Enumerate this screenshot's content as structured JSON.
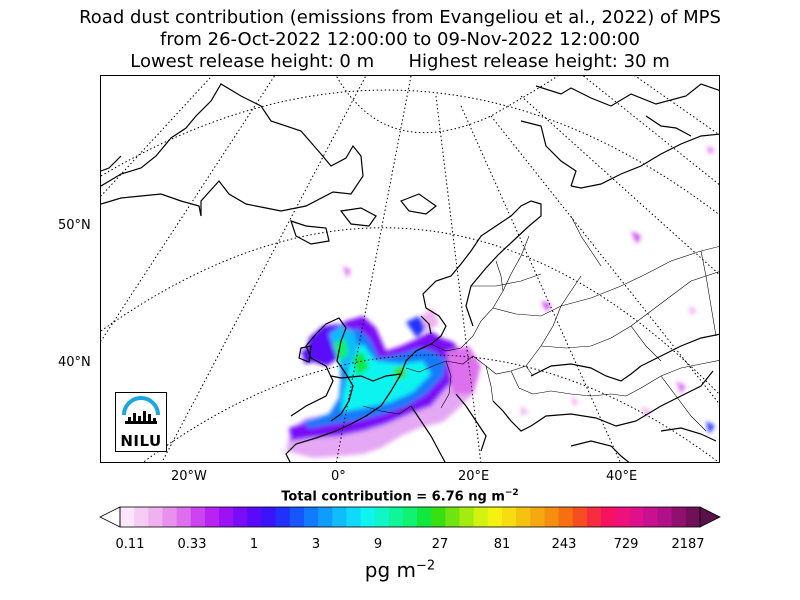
{
  "title": {
    "line1": "Road dust contribution (emissions from Evangeliou et al., 2022) of MPS",
    "line2": "from 26-Oct-2022 12:00:00 to 09-Nov-2022 12:00:00",
    "line3": "Lowest release height: 0 m      Highest release height: 30 m"
  },
  "map": {
    "lat_labels": [
      "50°N",
      "40°N"
    ],
    "lon_labels": [
      "20°W",
      "0°",
      "20°E",
      "40°E"
    ],
    "logo": "NILU"
  },
  "total": {
    "prefix": "Total contribution = 6.76 ng m",
    "exp": "−2"
  },
  "colorbar": {
    "ticks": [
      "0.11",
      "0.33",
      "1",
      "3",
      "9",
      "27",
      "81",
      "243",
      "729",
      "2187"
    ],
    "unit_base": "pg m",
    "unit_exp": "−2",
    "colors": [
      "#fbe6fb",
      "#f5ccf5",
      "#efb2ef",
      "#e890ee",
      "#dd6fee",
      "#cc44f0",
      "#b822f3",
      "#9b12f6",
      "#7a0cf8",
      "#5a0afa",
      "#3a14fc",
      "#2230fc",
      "#1656fc",
      "#127afc",
      "#109cfc",
      "#10bcfc",
      "#10dafc",
      "#10f4f0",
      "#10f6c8",
      "#10f49a",
      "#10f270",
      "#10e840",
      "#38e010",
      "#70e410",
      "#a4ec10",
      "#d4f210",
      "#f4f210",
      "#f6dc10",
      "#f6c210",
      "#f6a810",
      "#f68e10",
      "#f67010",
      "#f64e20",
      "#f62c40",
      "#f61260",
      "#f0107c",
      "#e0108c",
      "#c81090",
      "#b01088",
      "#901070",
      "#701058"
    ]
  }
}
